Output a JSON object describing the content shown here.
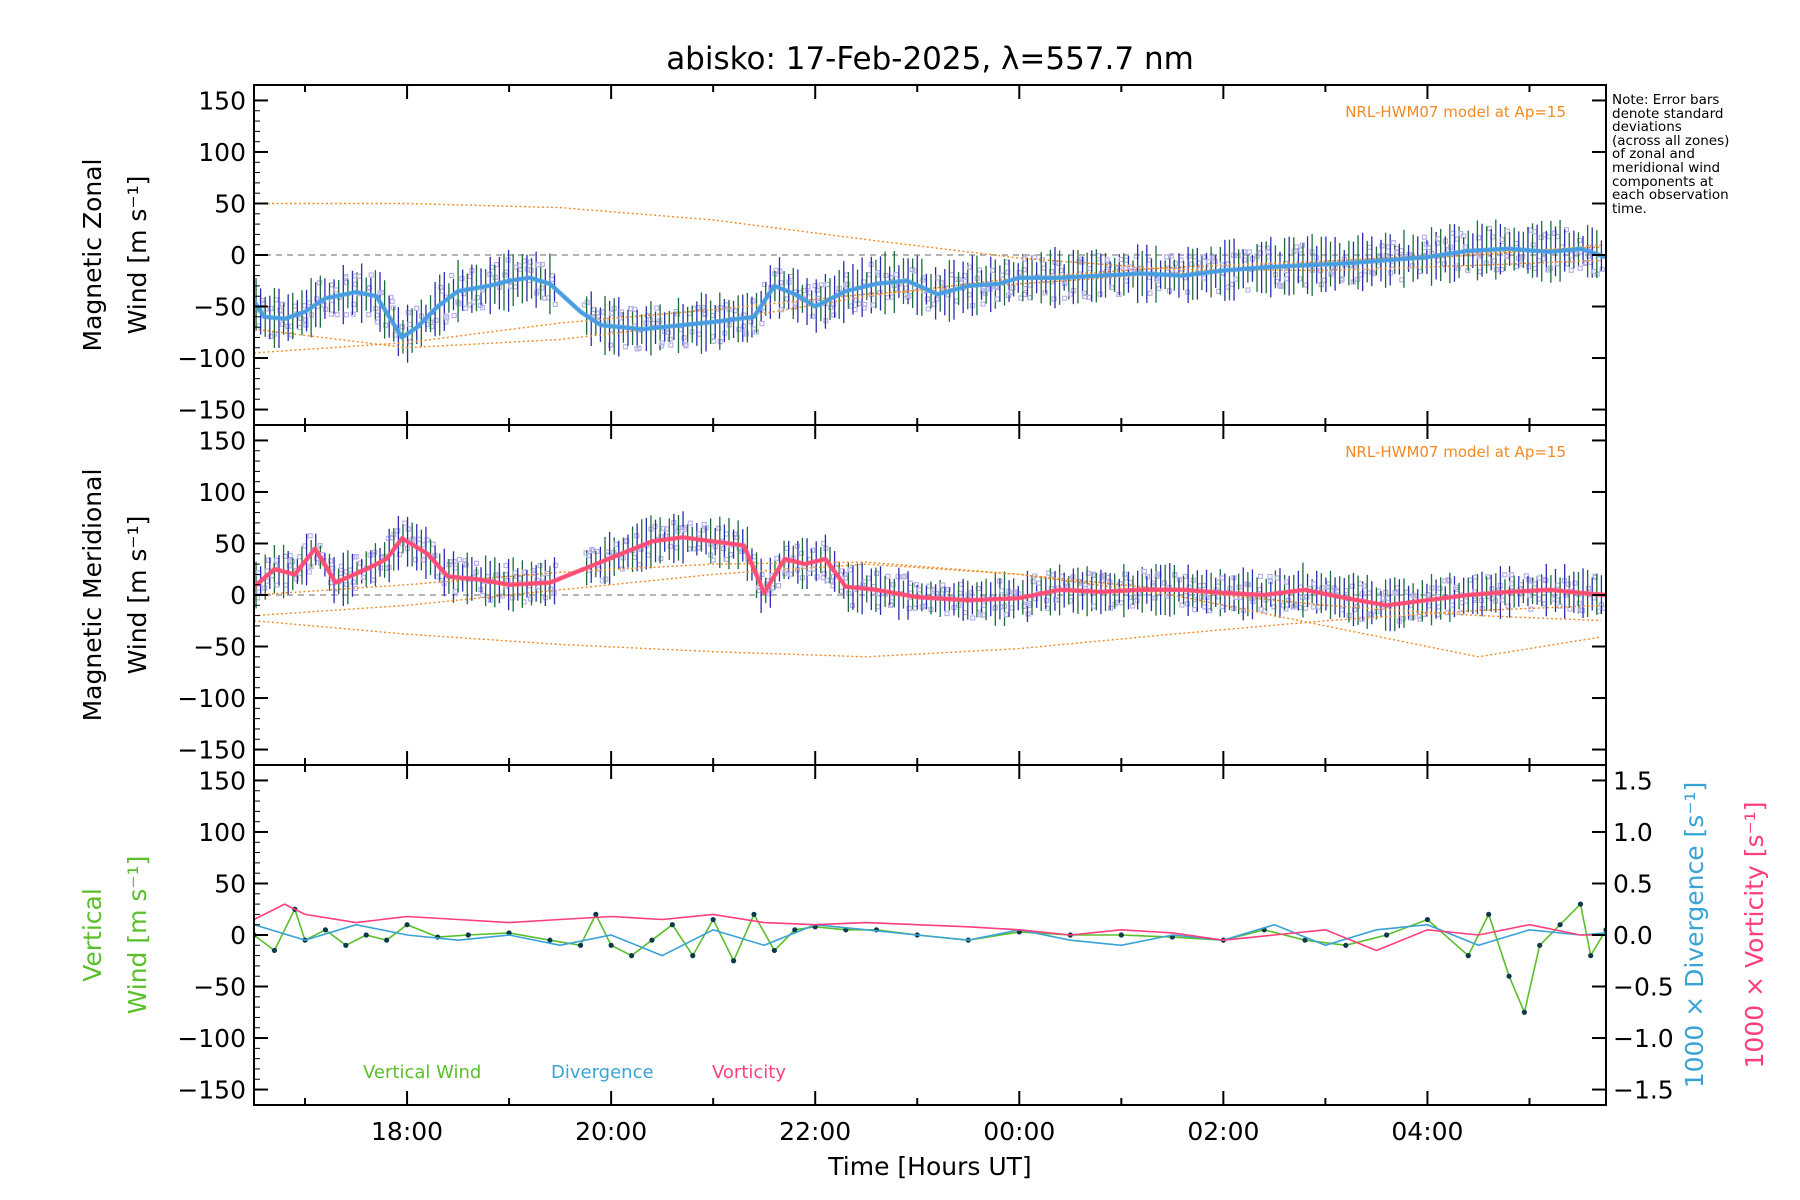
{
  "title": "abisko: 17-Feb-2025, λ=557.7 nm",
  "note_lines": [
    "Note: Error bars",
    "denote standard",
    "deviations",
    "(across all zones)",
    "of zonal and",
    "meridional wind",
    "components at",
    "each observation",
    "time."
  ],
  "colors": {
    "model": "#f08a24",
    "zonal_fit": "#4aa3df",
    "zonal_line": "#1f3fff",
    "meridional_fit": "#ff4f7a",
    "meridional_line": "#ff2a1a",
    "scatter": "#b7b3e8",
    "vertical": "#5abf2a",
    "divergence": "#3aa3d6",
    "vorticity": "#ff3d7f",
    "errorbar_a": "#1a6a3a",
    "errorbar_b": "#2b2bb0"
  },
  "chart_data": [
    {
      "type": "line",
      "panel": "zonal",
      "ylabel_line1": "Magnetic Zonal",
      "ylabel_line2": "Wind [m s⁻¹]",
      "annotation": "NRL-HWM07 model at Ap=15",
      "ylim": [
        -165,
        165
      ],
      "yticks": [
        -150,
        -100,
        -50,
        0,
        50,
        100,
        150
      ],
      "ytick_labels": [
        "−150",
        "−100",
        "−50",
        "0",
        "50",
        "100",
        "150"
      ],
      "xlim_hours": [
        16.5,
        29.75
      ],
      "zero_line": true,
      "series": [
        {
          "kind": "fit",
          "x": [
            16.5,
            16.6,
            16.8,
            17.0,
            17.2,
            17.5,
            17.7,
            17.95,
            18.1,
            18.3,
            18.5,
            18.8,
            19.0,
            19.2,
            19.4,
            19.7,
            19.9,
            20.1,
            20.3,
            20.6,
            21.0,
            21.4,
            21.6,
            21.8,
            22.0,
            22.3,
            22.6,
            22.9,
            23.2,
            23.5,
            23.8,
            24.0,
            24.4,
            24.8,
            25.2,
            25.6,
            26.0,
            26.4,
            26.8,
            27.2,
            27.6,
            28.0,
            28.4,
            28.8,
            29.2,
            29.5,
            29.75
          ],
          "y": [
            -45,
            -60,
            -62,
            -55,
            -42,
            -36,
            -40,
            -80,
            -70,
            -50,
            -35,
            -30,
            -25,
            -22,
            -28,
            -55,
            -68,
            -70,
            -72,
            -69,
            -65,
            -60,
            -30,
            -38,
            -50,
            -35,
            -28,
            -25,
            -38,
            -30,
            -28,
            -22,
            -22,
            -20,
            -18,
            -20,
            -15,
            -12,
            -10,
            -8,
            -5,
            -2,
            4,
            6,
            3,
            6,
            -2
          ]
        },
        {
          "kind": "model",
          "x": [
            16.5,
            18.0,
            19.5,
            21.0,
            22.5,
            24.0,
            25.5,
            27.0,
            28.5,
            29.75
          ],
          "y": [
            50,
            50,
            46,
            34,
            15,
            -3,
            -14,
            -15,
            -10,
            -5
          ]
        },
        {
          "kind": "model",
          "x": [
            16.5,
            18.0,
            19.5,
            21.0,
            22.5,
            24.0,
            25.5,
            27.0,
            28.5,
            29.75
          ],
          "y": [
            -95,
            -85,
            -66,
            -53,
            -38,
            -28,
            -18,
            -8,
            0,
            10
          ]
        },
        {
          "kind": "model",
          "x": [
            16.5,
            18.0,
            19.5,
            21.0,
            22.5,
            24.0,
            25.5,
            27.0,
            28.5,
            29.75
          ],
          "y": [
            -72,
            -90,
            -82,
            -65,
            -40,
            -22,
            -12,
            -6,
            2,
            8
          ]
        }
      ]
    },
    {
      "type": "line",
      "panel": "meridional",
      "ylabel_line1": "Magnetic Meridional",
      "ylabel_line2": "Wind [m s⁻¹]",
      "annotation": "NRL-HWM07 model at Ap=15",
      "ylim": [
        -165,
        165
      ],
      "yticks": [
        -150,
        -100,
        -50,
        0,
        50,
        100,
        150
      ],
      "ytick_labels": [
        "−150",
        "−100",
        "−50",
        "0",
        "50",
        "100",
        "150"
      ],
      "xlim_hours": [
        16.5,
        29.75
      ],
      "zero_line": true,
      "series": [
        {
          "kind": "fit",
          "x": [
            16.5,
            16.7,
            16.9,
            17.1,
            17.3,
            17.6,
            17.8,
            17.95,
            18.2,
            18.4,
            18.7,
            19.0,
            19.4,
            19.8,
            20.1,
            20.4,
            20.7,
            21.0,
            21.3,
            21.5,
            21.7,
            21.9,
            22.1,
            22.3,
            22.6,
            23.0,
            23.5,
            24.0,
            24.4,
            24.8,
            25.2,
            25.6,
            26.0,
            26.4,
            26.8,
            27.2,
            27.6,
            28.0,
            28.4,
            28.8,
            29.2,
            29.5,
            29.75
          ],
          "y": [
            8,
            25,
            20,
            45,
            12,
            25,
            35,
            55,
            40,
            18,
            15,
            10,
            12,
            28,
            40,
            52,
            56,
            52,
            48,
            2,
            35,
            30,
            35,
            8,
            5,
            -2,
            -5,
            -3,
            5,
            3,
            5,
            5,
            2,
            0,
            5,
            -3,
            -10,
            -5,
            0,
            3,
            5,
            2,
            0
          ]
        },
        {
          "kind": "model",
          "x": [
            16.5,
            18.0,
            19.5,
            21.0,
            22.5,
            24.0,
            25.5,
            27.0,
            28.5,
            29.75
          ],
          "y": [
            -20,
            -10,
            5,
            20,
            30,
            20,
            0,
            -30,
            -60,
            -40
          ]
        },
        {
          "kind": "model",
          "x": [
            16.5,
            18.0,
            19.5,
            21.0,
            22.5,
            24.0,
            25.5,
            27.0,
            28.5,
            29.75
          ],
          "y": [
            -25,
            -38,
            -48,
            -55,
            -60,
            -52,
            -38,
            -25,
            -15,
            -10
          ]
        },
        {
          "kind": "model",
          "x": [
            16.5,
            18.0,
            19.5,
            21.0,
            22.5,
            24.0,
            25.5,
            27.0,
            28.5,
            29.75
          ],
          "y": [
            0,
            10,
            22,
            30,
            32,
            20,
            5,
            -10,
            -20,
            -25
          ]
        }
      ]
    },
    {
      "type": "line",
      "panel": "vertical",
      "ylabel_line1": "Vertical",
      "ylabel_line2": "Wind [m s⁻¹]",
      "ylim": [
        -165,
        165
      ],
      "yticks": [
        -150,
        -100,
        -50,
        0,
        50,
        100,
        150
      ],
      "ytick_labels": [
        "−150",
        "−100",
        "−50",
        "0",
        "50",
        "100",
        "150"
      ],
      "y2lim": [
        -1.65,
        1.65
      ],
      "y2ticks": [
        -1.5,
        -1.0,
        -0.5,
        0.0,
        0.5,
        1.0,
        1.5
      ],
      "y2tick_labels": [
        "−1.5",
        "−1.0",
        "−0.5",
        "0.0",
        "0.5",
        "1.0",
        "1.5"
      ],
      "y2label_1": "1000 × Divergence [s⁻¹]",
      "y2label_2": "1000 × Vorticity [s⁻¹]",
      "xlim_hours": [
        16.5,
        29.75
      ],
      "xtick_hours": [
        18,
        20,
        22,
        24,
        26,
        28
      ],
      "xtick_labels": [
        "18:00",
        "20:00",
        "22:00",
        "00:00",
        "02:00",
        "04:00"
      ],
      "xlabel": "Time [Hours UT]",
      "legend": [
        "Vertical Wind",
        "Divergence",
        "Vorticity"
      ],
      "series": [
        {
          "name": "Vertical Wind",
          "x": [
            16.5,
            16.7,
            16.9,
            17.0,
            17.2,
            17.4,
            17.6,
            17.8,
            18.0,
            18.3,
            18.6,
            19.0,
            19.4,
            19.7,
            19.85,
            20.0,
            20.2,
            20.4,
            20.6,
            20.8,
            21.0,
            21.2,
            21.4,
            21.6,
            21.8,
            22.0,
            22.3,
            22.6,
            23.0,
            23.5,
            24.0,
            24.5,
            25.0,
            25.5,
            26.0,
            26.4,
            26.8,
            27.2,
            27.6,
            28.0,
            28.4,
            28.6,
            28.8,
            28.95,
            29.1,
            29.3,
            29.5,
            29.6,
            29.75
          ],
          "y": [
            0,
            -15,
            25,
            -5,
            5,
            -10,
            0,
            -5,
            10,
            -2,
            0,
            2,
            -5,
            -10,
            20,
            -10,
            -20,
            -5,
            10,
            -20,
            15,
            -25,
            20,
            -15,
            5,
            8,
            5,
            5,
            0,
            -5,
            3,
            0,
            0,
            -2,
            -5,
            5,
            -5,
            -10,
            0,
            15,
            -20,
            20,
            -40,
            -75,
            -10,
            10,
            30,
            -20,
            5
          ]
        },
        {
          "name": "Divergence",
          "x": [
            16.5,
            17.0,
            17.5,
            18.0,
            18.5,
            19.0,
            19.5,
            20.0,
            20.5,
            21.0,
            21.5,
            22.0,
            22.5,
            23.0,
            23.5,
            24.0,
            24.5,
            25.0,
            25.5,
            26.0,
            26.5,
            27.0,
            27.5,
            28.0,
            28.5,
            29.0,
            29.5,
            29.75
          ],
          "y": [
            0.1,
            -0.05,
            0.1,
            0.0,
            -0.05,
            0.0,
            -0.1,
            0.0,
            -0.2,
            0.05,
            -0.1,
            0.1,
            0.05,
            0.0,
            -0.05,
            0.05,
            -0.05,
            -0.1,
            0.0,
            -0.05,
            0.1,
            -0.1,
            0.05,
            0.1,
            -0.1,
            0.05,
            0.0,
            0.02
          ]
        },
        {
          "name": "Vorticity",
          "x": [
            16.5,
            16.8,
            17.0,
            17.5,
            18.0,
            18.5,
            19.0,
            19.5,
            20.0,
            20.5,
            21.0,
            21.5,
            22.0,
            22.5,
            23.0,
            23.5,
            24.0,
            24.5,
            25.0,
            25.5,
            26.0,
            26.5,
            27.0,
            27.5,
            28.0,
            28.5,
            29.0,
            29.5,
            29.75
          ],
          "y": [
            0.15,
            0.3,
            0.2,
            0.12,
            0.18,
            0.15,
            0.12,
            0.15,
            0.18,
            0.15,
            0.2,
            0.12,
            0.1,
            0.12,
            0.1,
            0.08,
            0.05,
            0.0,
            0.05,
            0.02,
            -0.05,
            0.0,
            0.05,
            -0.15,
            0.05,
            0.0,
            0.1,
            0.0,
            0.0
          ]
        }
      ]
    }
  ]
}
